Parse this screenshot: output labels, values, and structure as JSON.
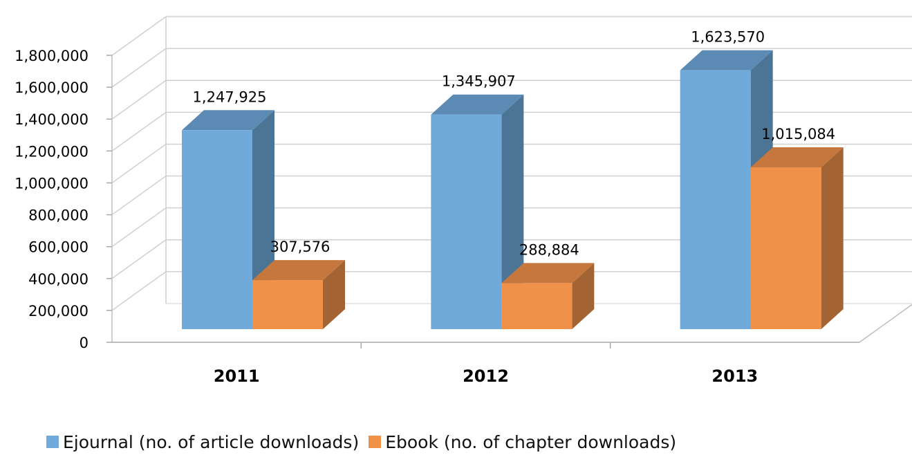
{
  "chart_data": {
    "type": "bar",
    "title": "",
    "xlabel": "",
    "ylabel": "",
    "categories": [
      "2011",
      "2012",
      "2013"
    ],
    "series": [
      {
        "name": "Ejournal (no. of article downloads)",
        "values": [
          1247925,
          1345907,
          1623570
        ],
        "labels": [
          "1,247,925",
          "1,345,907",
          "1,623,570"
        ],
        "color": "#6FAADB"
      },
      {
        "name": "Ebook (no. of chapter downloads)",
        "values": [
          307576,
          288884,
          1015084
        ],
        "labels": [
          "307,576",
          "288,884",
          "1,015,084"
        ],
        "color": "#F0914A"
      }
    ],
    "ylim": [
      0,
      1800000
    ],
    "yticks": [
      "0",
      "200,000",
      "400,000",
      "600,000",
      "800,000",
      "1,000,000",
      "1,200,000",
      "1,400,000",
      "1,600,000",
      "1,800,000"
    ],
    "grid": true,
    "style": "3d-clustered-column",
    "legend_position": "bottom"
  }
}
